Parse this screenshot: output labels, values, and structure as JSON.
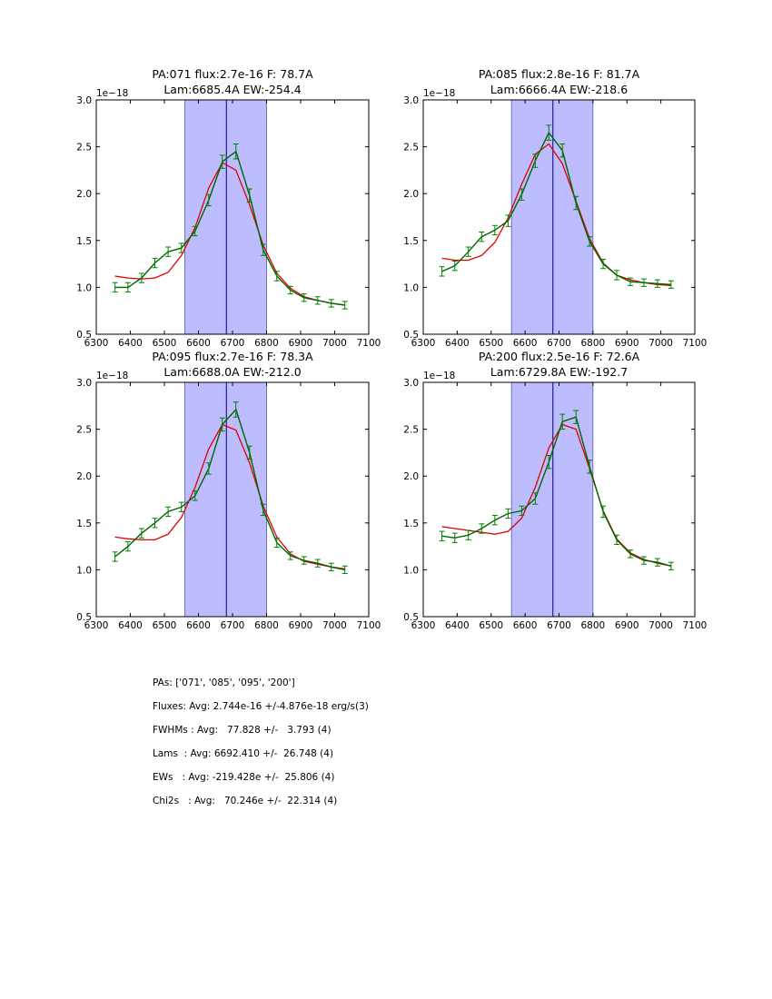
{
  "chart_data": [
    {
      "type": "line",
      "title_line1": "PA:071 flux:2.7e-16 F: 78.7A",
      "title_line2": "Lam:6685.4A EW:-254.4",
      "xlim": [
        6300,
        7100
      ],
      "ylim": [
        0.5,
        3.0
      ],
      "y_scale_label": "1e−18",
      "x_ticks": [
        "6300",
        "6400",
        "6500",
        "6600",
        "6700",
        "6800",
        "6900",
        "7000",
        "7100"
      ],
      "y_ticks": [
        "0.5",
        "1.0",
        "1.5",
        "2.0",
        "2.5",
        "3.0"
      ],
      "band": [
        6560,
        6800
      ],
      "center_line": 6682,
      "data": {
        "x": [
          6355,
          6393,
          6433,
          6472,
          6511,
          6550,
          6590,
          6630,
          6670,
          6710,
          6750,
          6790,
          6830,
          6870,
          6910,
          6950,
          6990,
          7030
        ],
        "y": [
          1.0,
          1.0,
          1.1,
          1.26,
          1.38,
          1.42,
          1.6,
          1.93,
          2.34,
          2.45,
          1.98,
          1.4,
          1.12,
          0.97,
          0.89,
          0.86,
          0.83,
          0.81
        ],
        "err": [
          0.05,
          0.05,
          0.05,
          0.05,
          0.05,
          0.05,
          0.05,
          0.06,
          0.07,
          0.08,
          0.07,
          0.06,
          0.05,
          0.04,
          0.04,
          0.04,
          0.04,
          0.04
        ]
      },
      "model": {
        "x": [
          6355,
          6393,
          6433,
          6472,
          6511,
          6550,
          6590,
          6630,
          6670,
          6710,
          6750,
          6790,
          6830,
          6870,
          6910,
          6950,
          6990,
          7030
        ],
        "y": [
          1.12,
          1.1,
          1.09,
          1.1,
          1.16,
          1.34,
          1.64,
          2.06,
          2.33,
          2.25,
          1.88,
          1.45,
          1.15,
          0.99,
          0.9,
          0.86,
          0.83,
          0.81
        ]
      }
    },
    {
      "type": "line",
      "title_line1": "PA:085 flux:2.8e-16 F: 81.7A",
      "title_line2": "Lam:6666.4A EW:-218.6",
      "xlim": [
        6300,
        7100
      ],
      "ylim": [
        0.5,
        3.0
      ],
      "y_scale_label": "1e−18",
      "x_ticks": [
        "6300",
        "6400",
        "6500",
        "6600",
        "6700",
        "6800",
        "6900",
        "7000",
        "7100"
      ],
      "y_ticks": [
        "0.5",
        "1.0",
        "1.5",
        "2.0",
        "2.5",
        "3.0"
      ],
      "band": [
        6560,
        6800
      ],
      "center_line": 6682,
      "data": {
        "x": [
          6355,
          6393,
          6433,
          6472,
          6511,
          6550,
          6590,
          6630,
          6670,
          6710,
          6750,
          6790,
          6830,
          6870,
          6910,
          6950,
          6990,
          7030
        ],
        "y": [
          1.17,
          1.23,
          1.38,
          1.54,
          1.61,
          1.71,
          1.99,
          2.35,
          2.65,
          2.46,
          1.9,
          1.49,
          1.25,
          1.13,
          1.06,
          1.05,
          1.04,
          1.03
        ],
        "err": [
          0.05,
          0.05,
          0.05,
          0.05,
          0.05,
          0.06,
          0.06,
          0.07,
          0.08,
          0.07,
          0.07,
          0.05,
          0.05,
          0.05,
          0.04,
          0.04,
          0.04,
          0.04
        ]
      },
      "model": {
        "x": [
          6355,
          6393,
          6433,
          6472,
          6511,
          6550,
          6590,
          6630,
          6670,
          6710,
          6750,
          6790,
          6830,
          6870,
          6910,
          6950,
          6990,
          7030
        ],
        "y": [
          1.31,
          1.29,
          1.29,
          1.34,
          1.48,
          1.74,
          2.1,
          2.42,
          2.53,
          2.32,
          1.92,
          1.52,
          1.26,
          1.13,
          1.08,
          1.05,
          1.03,
          1.02
        ]
      }
    },
    {
      "type": "line",
      "title_line1": "PA:095 flux:2.7e-16 F: 78.3A",
      "title_line2": "Lam:6688.0A EW:-212.0",
      "xlim": [
        6300,
        7100
      ],
      "ylim": [
        0.5,
        3.0
      ],
      "y_scale_label": "1e−18",
      "x_ticks": [
        "6300",
        "6400",
        "6500",
        "6600",
        "6700",
        "6800",
        "6900",
        "7000",
        "7100"
      ],
      "y_ticks": [
        "0.5",
        "1.0",
        "1.5",
        "2.0",
        "2.5",
        "3.0"
      ],
      "band": [
        6560,
        6800
      ],
      "center_line": 6682,
      "data": {
        "x": [
          6355,
          6393,
          6433,
          6472,
          6511,
          6550,
          6590,
          6630,
          6670,
          6710,
          6750,
          6790,
          6830,
          6870,
          6910,
          6950,
          6990,
          7030
        ],
        "y": [
          1.14,
          1.25,
          1.39,
          1.5,
          1.62,
          1.67,
          1.79,
          2.08,
          2.55,
          2.71,
          2.25,
          1.64,
          1.29,
          1.15,
          1.1,
          1.07,
          1.03,
          1.0
        ],
        "err": [
          0.05,
          0.05,
          0.05,
          0.05,
          0.05,
          0.05,
          0.05,
          0.06,
          0.07,
          0.08,
          0.07,
          0.06,
          0.05,
          0.04,
          0.04,
          0.04,
          0.04,
          0.04
        ]
      },
      "model": {
        "x": [
          6355,
          6393,
          6433,
          6472,
          6511,
          6550,
          6590,
          6630,
          6670,
          6710,
          6750,
          6790,
          6830,
          6870,
          6910,
          6950,
          6990,
          7030
        ],
        "y": [
          1.35,
          1.33,
          1.32,
          1.32,
          1.38,
          1.56,
          1.88,
          2.29,
          2.55,
          2.49,
          2.14,
          1.68,
          1.35,
          1.17,
          1.09,
          1.06,
          1.03,
          1.01
        ]
      }
    },
    {
      "type": "line",
      "title_line1": "PA:200 flux:2.5e-16 F: 72.6A",
      "title_line2": "Lam:6729.8A EW:-192.7",
      "xlim": [
        6300,
        7100
      ],
      "ylim": [
        0.5,
        3.0
      ],
      "y_scale_label": "1e−18",
      "x_ticks": [
        "6300",
        "6400",
        "6500",
        "6600",
        "6700",
        "6800",
        "6900",
        "7000",
        "7100"
      ],
      "y_ticks": [
        "0.5",
        "1.0",
        "1.5",
        "2.0",
        "2.5",
        "3.0"
      ],
      "band": [
        6560,
        6800
      ],
      "center_line": 6682,
      "data": {
        "x": [
          6355,
          6393,
          6433,
          6472,
          6511,
          6550,
          6590,
          6630,
          6670,
          6710,
          6750,
          6790,
          6830,
          6870,
          6910,
          6950,
          6990,
          7030
        ],
        "y": [
          1.36,
          1.34,
          1.37,
          1.44,
          1.53,
          1.6,
          1.63,
          1.76,
          2.15,
          2.58,
          2.63,
          2.1,
          1.62,
          1.32,
          1.17,
          1.1,
          1.08,
          1.04
        ],
        "err": [
          0.05,
          0.05,
          0.05,
          0.05,
          0.05,
          0.05,
          0.05,
          0.06,
          0.07,
          0.08,
          0.07,
          0.07,
          0.06,
          0.05,
          0.04,
          0.04,
          0.04,
          0.04
        ]
      },
      "model": {
        "x": [
          6355,
          6393,
          6433,
          6472,
          6511,
          6550,
          6590,
          6630,
          6670,
          6710,
          6750,
          6790,
          6830,
          6870,
          6910,
          6950,
          6990,
          7030
        ],
        "y": [
          1.46,
          1.44,
          1.42,
          1.4,
          1.38,
          1.41,
          1.55,
          1.88,
          2.3,
          2.55,
          2.5,
          2.08,
          1.63,
          1.33,
          1.18,
          1.11,
          1.07,
          1.04
        ]
      }
    }
  ],
  "summary": {
    "pas": "PAs: ['071', '085', '095', '200']",
    "fluxes": "Fluxes: Avg: 2.744e-16 +/-4.876e-18 erg/s(3)",
    "fwhms": "FWHMs : Avg:   77.828 +/-   3.793 (4)",
    "lams": "Lams  : Avg: 6692.410 +/-  26.748 (4)",
    "ews": "EWs   : Avg: -219.428e +/-  25.806 (4)",
    "chi2s": "Chi2s   : Avg:   70.246e +/-  22.314 (4)"
  },
  "colors": {
    "data_line": "#006400",
    "errorbar": "#008000",
    "model": "#e00000",
    "band": "#bcbcff",
    "band_edge": "#5555aa",
    "center": "#000080"
  }
}
